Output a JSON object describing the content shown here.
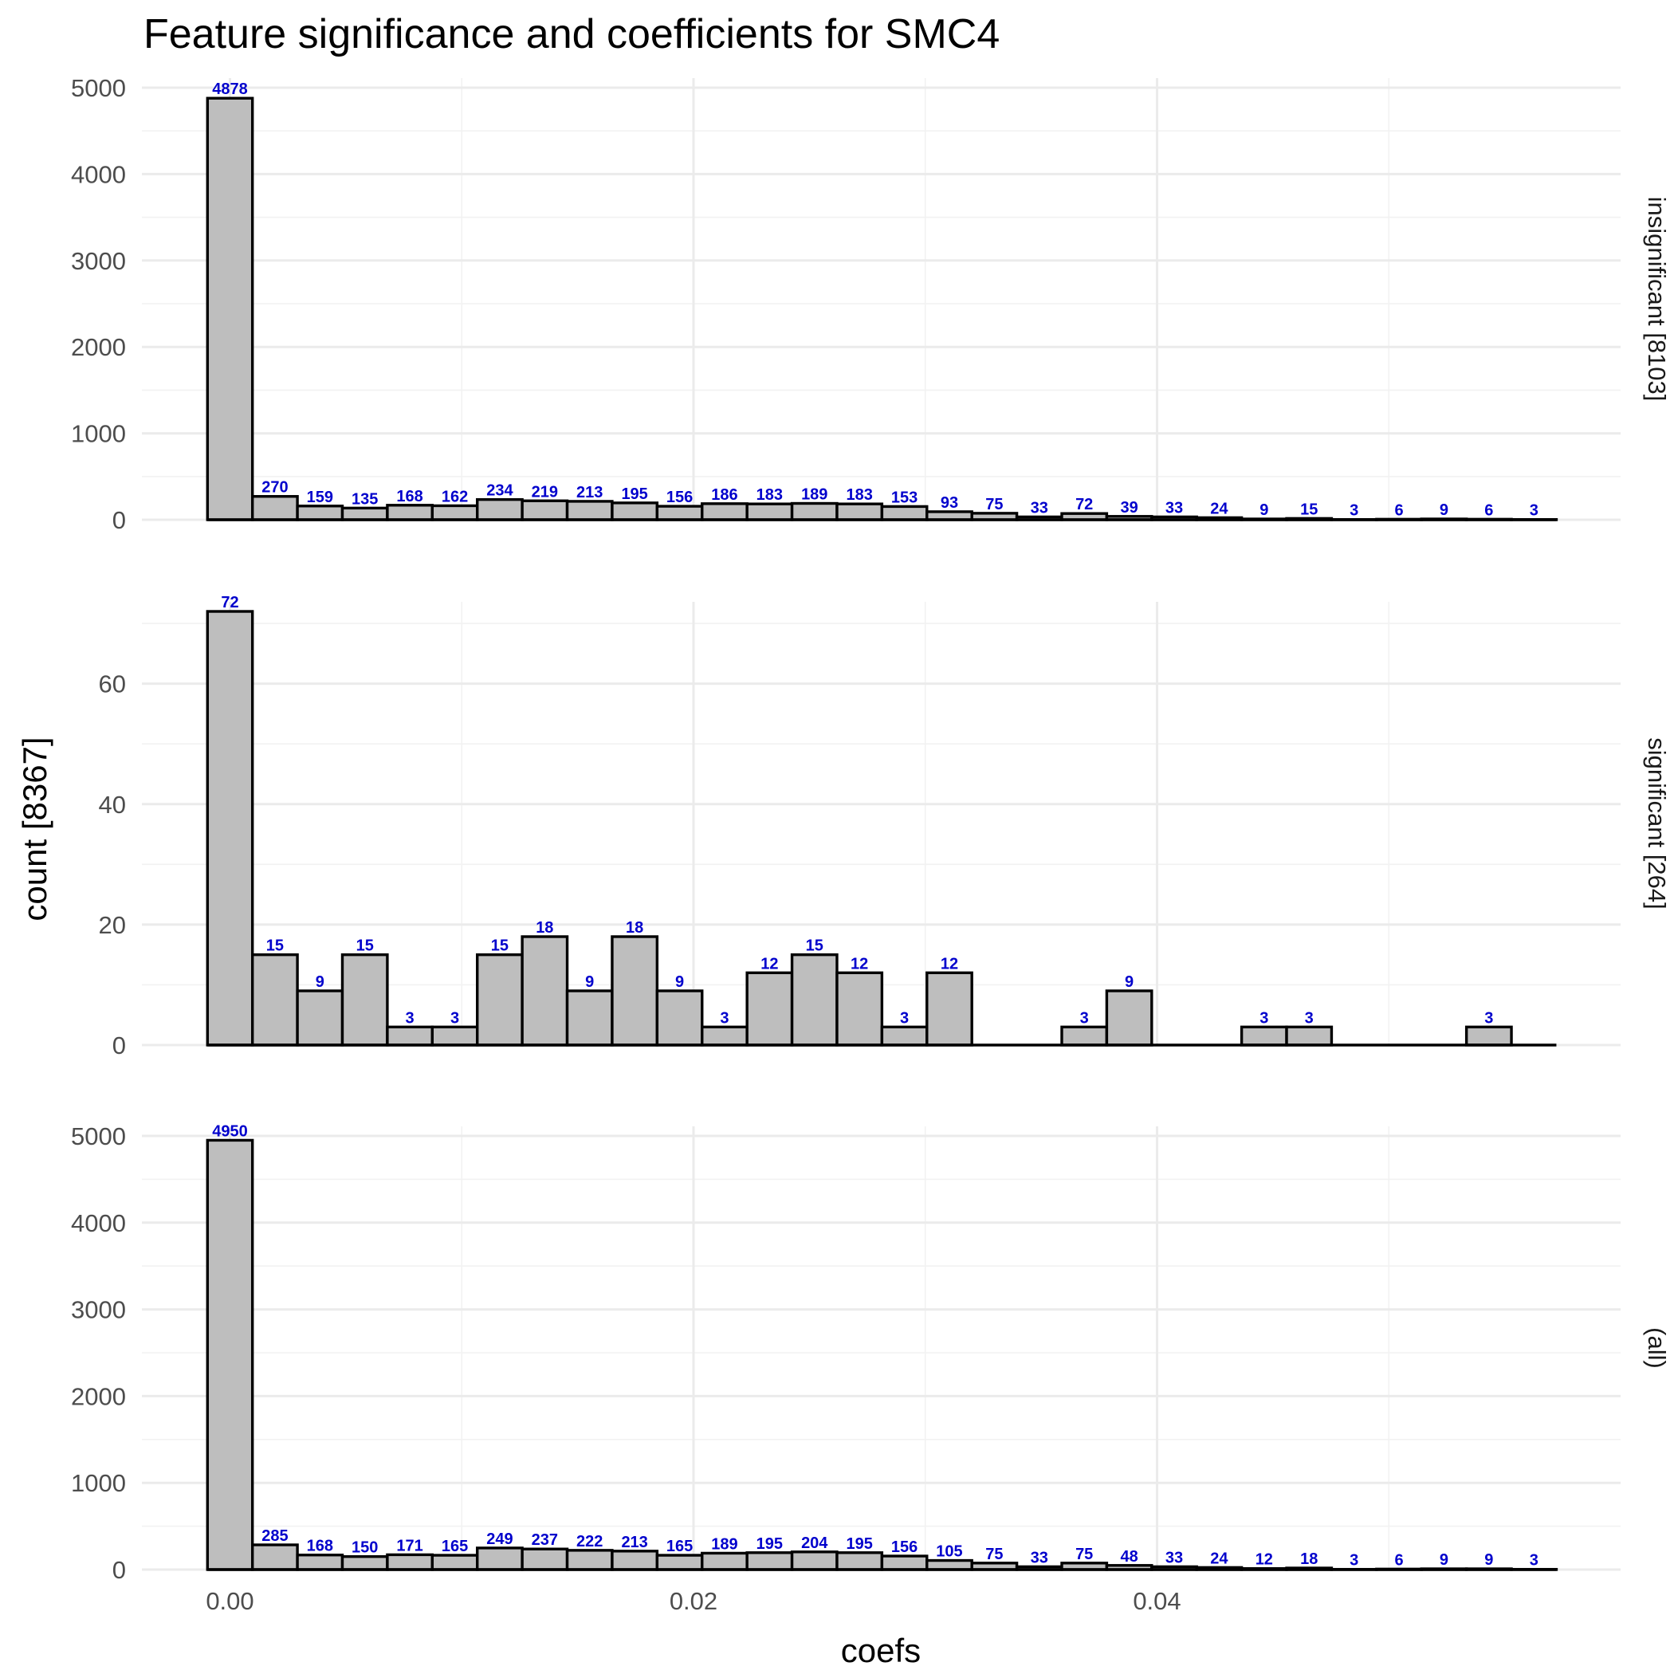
{
  "chart_data": {
    "type": "bar",
    "title": "Feature significance and coefficients for SMC4",
    "xlabel": "coefs",
    "ylabel": "count [8367]",
    "x_ticks": [
      {
        "value": 0.0,
        "label": "0.00"
      },
      {
        "value": 0.02,
        "label": "0.02"
      },
      {
        "value": 0.04,
        "label": "0.04"
      }
    ],
    "xlim": [
      -0.0038,
      0.06
    ],
    "bins": {
      "first_center": 0.0,
      "width": 0.00194,
      "count": 30
    },
    "label_color": "#0000CC",
    "bar_fill": "#BEBEBE",
    "panels": [
      {
        "strip": "insignificant [8103]",
        "ylim": [
          0,
          5000
        ],
        "y_ticks": [
          0,
          1000,
          2000,
          3000,
          4000,
          5000
        ],
        "values": [
          4878,
          270,
          159,
          135,
          168,
          162,
          234,
          219,
          213,
          195,
          156,
          186,
          183,
          189,
          183,
          153,
          93,
          75,
          33,
          72,
          39,
          33,
          24,
          9,
          15,
          3,
          6,
          9,
          6,
          3
        ],
        "labels": [
          "4878",
          "270",
          "159",
          "135",
          "168",
          "162",
          "234",
          "219",
          "213",
          "195",
          "156",
          "186",
          "183",
          "189",
          "183",
          "153",
          "93",
          "75",
          "33",
          "72",
          "39",
          "33",
          "24",
          "9",
          "15",
          "3",
          "6",
          "9",
          "6",
          "3"
        ]
      },
      {
        "strip": "significant [264]",
        "ylim": [
          0,
          72
        ],
        "y_ticks": [
          0,
          20,
          40,
          60
        ],
        "values": [
          72,
          15,
          9,
          15,
          3,
          3,
          15,
          18,
          9,
          18,
          9,
          3,
          12,
          15,
          12,
          3,
          12,
          0,
          0,
          3,
          9,
          0,
          0,
          3,
          3,
          0,
          0,
          0,
          3,
          0
        ],
        "labels": [
          "72",
          "15",
          "9",
          "15",
          "3",
          "3",
          "15",
          "18",
          "9",
          "18",
          "9",
          "3",
          "12",
          "15",
          "12",
          "3",
          "12",
          "",
          "",
          "3",
          "9",
          "",
          "",
          "3",
          "3",
          "",
          "",
          "",
          "3",
          ""
        ]
      },
      {
        "strip": "(all)",
        "ylim": [
          0,
          5000
        ],
        "y_ticks": [
          0,
          1000,
          2000,
          3000,
          4000,
          5000
        ],
        "values": [
          4950,
          285,
          168,
          150,
          171,
          165,
          249,
          237,
          222,
          213,
          165,
          189,
          195,
          204,
          195,
          156,
          105,
          75,
          33,
          75,
          48,
          33,
          24,
          12,
          18,
          3,
          6,
          9,
          9,
          3
        ],
        "labels": [
          "4950",
          "285",
          "168",
          "150",
          "171",
          "165",
          "249",
          "237",
          "222",
          "213",
          "165",
          "189",
          "195",
          "204",
          "195",
          "156",
          "105",
          "75",
          "33",
          "75",
          "48",
          "33",
          "24",
          "12",
          "18",
          "3",
          "6",
          "9",
          "9",
          "3"
        ]
      }
    ]
  }
}
